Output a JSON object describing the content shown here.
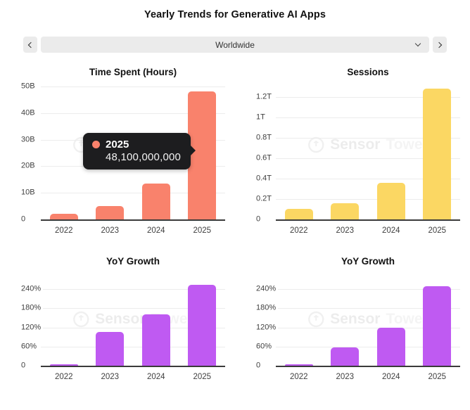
{
  "page": {
    "title": "Yearly Trends for Generative AI Apps"
  },
  "nav": {
    "prev_icon": "chevron-left-icon",
    "next_icon": "chevron-right-icon",
    "dropdown_value": "Worldwide",
    "dropdown_icon": "chevron-down-icon"
  },
  "watermark": {
    "word1": "Sensor",
    "word2": "Tower"
  },
  "colors": {
    "salmon": "#f9826c",
    "yellow": "#fbd763",
    "purple": "#bf5af2",
    "tooltip_bg": "#1d1d1f",
    "control_bg": "#ebebeb",
    "gridline": "#ececec",
    "axis": "#3a3a3a"
  },
  "chart_data": [
    {
      "type": "bar",
      "title": "Time Spent (Hours)",
      "categories": [
        "2022",
        "2023",
        "2024",
        "2025"
      ],
      "values": [
        2.2,
        4.9,
        13.5,
        48.1
      ],
      "value_unit": "billions of hours",
      "bar_color": "#f9826c",
      "ymax": 50,
      "ylim": [
        0,
        50
      ],
      "grid": true,
      "legend": "none",
      "yticks": [
        {
          "v": 0,
          "label": "0"
        },
        {
          "v": 10,
          "label": "10B"
        },
        {
          "v": 20,
          "label": "20B"
        },
        {
          "v": 30,
          "label": "30B"
        },
        {
          "v": 40,
          "label": "40B"
        },
        {
          "v": 50,
          "label": "50B"
        }
      ],
      "tooltip": {
        "category": "2025",
        "value": "48,100,000,000"
      }
    },
    {
      "type": "bar",
      "title": "Sessions",
      "categories": [
        "2022",
        "2023",
        "2024",
        "2025"
      ],
      "values": [
        0.1,
        0.16,
        0.36,
        1.28
      ],
      "value_unit": "trillions of sessions",
      "bar_color": "#fbd763",
      "ymax": 1.3,
      "ylim": [
        0,
        1.3
      ],
      "grid": true,
      "legend": "none",
      "yticks": [
        {
          "v": 0,
          "label": "0"
        },
        {
          "v": 0.2,
          "label": "0.2T"
        },
        {
          "v": 0.4,
          "label": "0.4T"
        },
        {
          "v": 0.6,
          "label": "0.6T"
        },
        {
          "v": 0.8,
          "label": "0.8T"
        },
        {
          "v": 1,
          "label": "1T"
        },
        {
          "v": 1.2,
          "label": "1.2T"
        }
      ]
    },
    {
      "type": "bar",
      "title": "YoY Growth",
      "categories": [
        "2022",
        "2023",
        "2024",
        "2025"
      ],
      "values": [
        1,
        105,
        160,
        253
      ],
      "value_unit": "percent",
      "bar_color": "#bf5af2",
      "ymax": 260,
      "ylim": [
        0,
        260
      ],
      "grid": true,
      "legend": "none",
      "yticks": [
        {
          "v": 0,
          "label": "0"
        },
        {
          "v": 60,
          "label": "60%"
        },
        {
          "v": 120,
          "label": "120%"
        },
        {
          "v": 180,
          "label": "180%"
        },
        {
          "v": 240,
          "label": "240%"
        }
      ]
    },
    {
      "type": "bar",
      "title": "YoY Growth",
      "categories": [
        "2022",
        "2023",
        "2024",
        "2025"
      ],
      "values": [
        1,
        58,
        120,
        250
      ],
      "value_unit": "percent",
      "bar_color": "#bf5af2",
      "ymax": 260,
      "ylim": [
        0,
        260
      ],
      "grid": true,
      "legend": "none",
      "yticks": [
        {
          "v": 0,
          "label": "0"
        },
        {
          "v": 60,
          "label": "60%"
        },
        {
          "v": 120,
          "label": "120%"
        },
        {
          "v": 180,
          "label": "180%"
        },
        {
          "v": 240,
          "label": "240%"
        }
      ]
    }
  ]
}
